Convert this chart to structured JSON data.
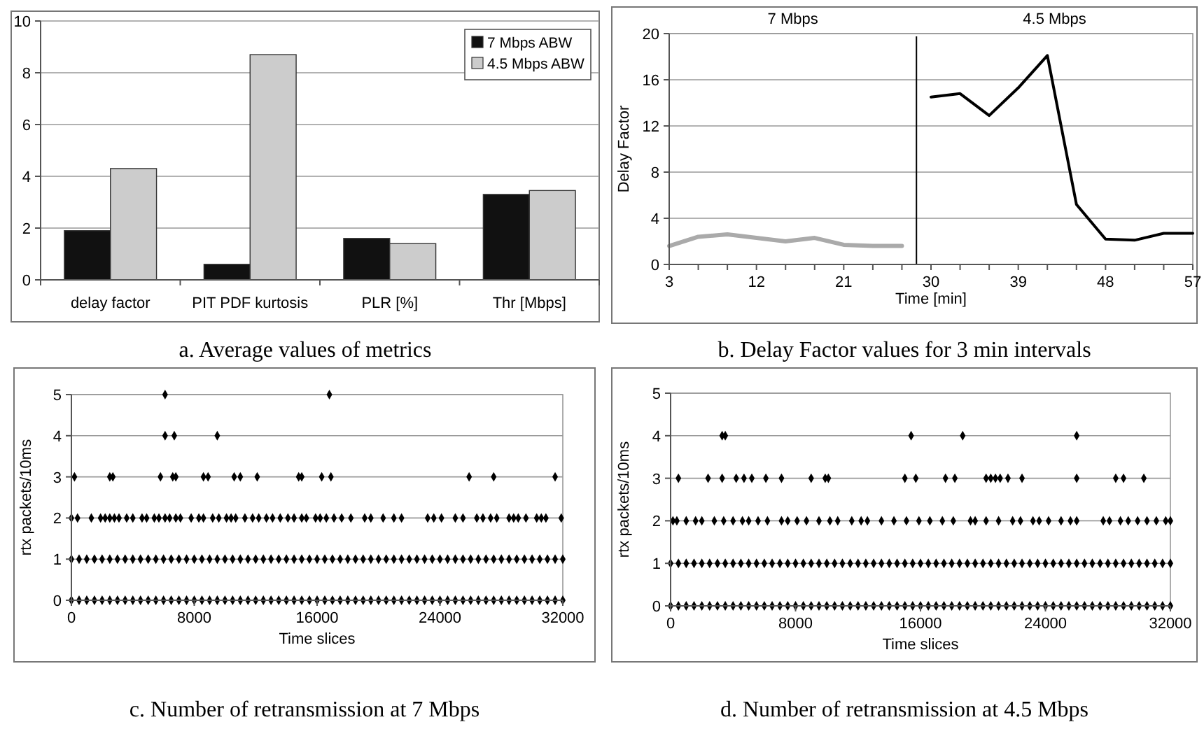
{
  "chart_data": [
    {
      "type": "bar",
      "title": "a. Average values of metrics",
      "categories": [
        "delay factor",
        "PIT PDF kurtosis",
        "PLR [%]",
        "Thr [Mbps]"
      ],
      "series": [
        {
          "name": "7 Mbps ABW",
          "color": "#111111",
          "values": [
            1.9,
            0.6,
            1.6,
            3.3
          ]
        },
        {
          "name": "4.5 Mbps ABW",
          "color": "#cccccc",
          "values": [
            4.3,
            8.7,
            1.4,
            3.45
          ]
        }
      ],
      "ylim": [
        0,
        10
      ],
      "yticks": [
        0,
        2,
        4,
        6,
        8,
        10
      ],
      "grid": "y",
      "legend": "top right"
    },
    {
      "type": "line",
      "title": "b. Delay Factor values for 3 min intervals",
      "xlabel": "Time [min]",
      "ylabel": "Delay Factor",
      "annotations": [
        "7 Mbps",
        "4.5 Mbps"
      ],
      "series": [
        {
          "color": "#aaaaaa",
          "x": [
            3,
            6,
            9,
            12,
            15,
            18,
            21,
            24,
            27
          ],
          "values": [
            1.6,
            2.4,
            2.6,
            2.3,
            2.0,
            2.3,
            1.7,
            1.6,
            1.6
          ]
        },
        {
          "color": "#000000",
          "x": [
            30,
            33,
            36,
            39,
            42,
            45,
            48,
            51,
            54,
            57
          ],
          "values": [
            14.5,
            14.8,
            12.9,
            15.3,
            18.1,
            5.2,
            2.2,
            2.1,
            2.7,
            2.7
          ]
        }
      ],
      "ref_lines": [
        {
          "axis": "x",
          "value": 28.5,
          "color": "#000000"
        }
      ],
      "xlim": [
        3,
        57
      ],
      "xticks": [
        3,
        {
          "value": 6,
          "label": null
        },
        {
          "value": 9,
          "label": null
        },
        12,
        {
          "value": 15,
          "label": null
        },
        {
          "value": 18,
          "label": null
        },
        21,
        {
          "value": 24,
          "label": null
        },
        {
          "value": 27,
          "label": null
        },
        30,
        {
          "value": 33,
          "label": null
        },
        {
          "value": 36,
          "label": null
        },
        39,
        {
          "value": 42,
          "label": null
        },
        {
          "value": 45,
          "label": null
        },
        48,
        {
          "value": 51,
          "label": null
        },
        {
          "value": 54,
          "label": null
        },
        57
      ],
      "ylim": [
        0,
        20
      ],
      "yticks": [
        0,
        4,
        8,
        12,
        16,
        20
      ],
      "grid": "y",
      "marker": "none",
      "line_style": "solid"
    },
    {
      "type": "scatter",
      "title": "c. Number of retransmission at 7 Mbps",
      "xlabel": "Time slices",
      "ylabel": "rtx packets/10ms",
      "series": [
        {
          "color": "#000000",
          "x": [
            0,
            500,
            1000,
            1500,
            2000,
            2500,
            3000,
            3500,
            4000,
            4500,
            5000,
            5500,
            6000,
            6500,
            7000,
            7500,
            8000,
            8500,
            9000,
            9500,
            10000,
            10500,
            11000,
            11500,
            12000,
            12500,
            13000,
            13500,
            14000,
            14500,
            15000,
            15500,
            16000,
            16500,
            17000,
            17500,
            18000,
            18500,
            19000,
            19500,
            20000,
            20500,
            21000,
            21500,
            22000,
            22500,
            23000,
            23500,
            24000,
            24500,
            25000,
            25500,
            26000,
            26500,
            27000,
            27500,
            28000,
            28500,
            29000,
            29500,
            30000,
            30500,
            31000,
            31500,
            32000
          ],
          "values": [
            0,
            0,
            0,
            0,
            0,
            0,
            0,
            0,
            0,
            0,
            0,
            0,
            0,
            0,
            0,
            0,
            0,
            0,
            0,
            0,
            0,
            0,
            0,
            0,
            0,
            0,
            0,
            0,
            0,
            0,
            0,
            0,
            0,
            0,
            0,
            0,
            0,
            0,
            0,
            0,
            0,
            0,
            0,
            0,
            0,
            0,
            0,
            0,
            0,
            0,
            0,
            0,
            0,
            0,
            0,
            0,
            0,
            0,
            0,
            0,
            0,
            0,
            0,
            0,
            0
          ]
        },
        {
          "color": "#000000",
          "x": [
            0,
            500,
            1000,
            1500,
            2000,
            2500,
            3000,
            3500,
            4000,
            4500,
            5000,
            5500,
            6000,
            6500,
            7000,
            7500,
            8000,
            8500,
            9000,
            9500,
            10000,
            10500,
            11000,
            11500,
            12000,
            12500,
            13000,
            13500,
            14000,
            14500,
            15000,
            15500,
            16000,
            16500,
            17000,
            17500,
            18000,
            18500,
            19000,
            19500,
            20000,
            20500,
            21000,
            21500,
            22000,
            22500,
            23000,
            23500,
            24000,
            24500,
            25000,
            25500,
            26000,
            26500,
            27000,
            27500,
            28000,
            28500,
            29000,
            29500,
            30000,
            30500,
            31000,
            31500,
            32000
          ],
          "values": [
            1,
            1,
            1,
            1,
            1,
            1,
            1,
            1,
            1,
            1,
            1,
            1,
            1,
            1,
            1,
            1,
            1,
            1,
            1,
            1,
            1,
            1,
            1,
            1,
            1,
            1,
            1,
            1,
            1,
            1,
            1,
            1,
            1,
            1,
            1,
            1,
            1,
            1,
            1,
            1,
            1,
            1,
            1,
            1,
            1,
            1,
            1,
            1,
            1,
            1,
            1,
            1,
            1,
            1,
            1,
            1,
            1,
            1,
            1,
            1,
            1,
            1,
            1,
            1,
            1
          ]
        },
        {
          "color": "#000000",
          "x": [
            0,
            400,
            1300,
            1900,
            2200,
            2500,
            2800,
            3100,
            3600,
            4000,
            4600,
            4900,
            5400,
            5700,
            6100,
            6400,
            6800,
            7100,
            7800,
            8300,
            8600,
            9200,
            9600,
            10100,
            10400,
            10700,
            11300,
            11800,
            12200,
            12700,
            13100,
            13600,
            14100,
            14500,
            15000,
            15300,
            15900,
            16200,
            16600,
            17100,
            17600,
            18200,
            19100,
            19500,
            20300,
            21000,
            21500,
            23200,
            23600,
            24100,
            25000,
            25500,
            26400,
            26800,
            27300,
            27700,
            28500,
            28800,
            29100,
            29600,
            30300,
            30600,
            30900,
            31900
          ],
          "values": [
            2,
            2,
            2,
            2,
            2,
            2,
            2,
            2,
            2,
            2,
            2,
            2,
            2,
            2,
            2,
            2,
            2,
            2,
            2,
            2,
            2,
            2,
            2,
            2,
            2,
            2,
            2,
            2,
            2,
            2,
            2,
            2,
            2,
            2,
            2,
            2,
            2,
            2,
            2,
            2,
            2,
            2,
            2,
            2,
            2,
            2,
            2,
            2,
            2,
            2,
            2,
            2,
            2,
            2,
            2,
            2,
            2,
            2,
            2,
            2,
            2,
            2,
            2,
            2
          ]
        },
        {
          "color": "#000000",
          "x": [
            200,
            2500,
            2700,
            5800,
            6600,
            6800,
            8600,
            8900,
            10600,
            11000,
            12100,
            14800,
            15000,
            16300,
            16900,
            25900,
            27500,
            31500
          ],
          "values": [
            3,
            3,
            3,
            3,
            3,
            3,
            3,
            3,
            3,
            3,
            3,
            3,
            3,
            3,
            3,
            3,
            3,
            3
          ]
        },
        {
          "color": "#000000",
          "x": [
            6100,
            6700,
            9500,
            6100,
            16800
          ],
          "values": [
            4,
            4,
            4,
            5,
            5
          ]
        }
      ],
      "xlim": [
        0,
        32000
      ],
      "xticks": [
        0,
        8000,
        16000,
        24000,
        32000
      ],
      "ylim": [
        0,
        5
      ],
      "yticks": [
        0,
        1,
        2,
        3,
        4,
        5
      ],
      "grid": "y",
      "marker": "diamond"
    },
    {
      "type": "scatter",
      "title": "d. Number of retransmission at 4.5 Mbps",
      "xlabel": "Time slices",
      "ylabel": "rtx packets/10ms",
      "series": [
        {
          "color": "#000000",
          "x": [
            0,
            500,
            1000,
            1500,
            2000,
            2500,
            3000,
            3500,
            4000,
            4500,
            5000,
            5500,
            6000,
            6500,
            7000,
            7500,
            8000,
            8500,
            9000,
            9500,
            10000,
            10500,
            11000,
            11500,
            12000,
            12500,
            13000,
            13500,
            14000,
            14500,
            15000,
            15500,
            16000,
            16500,
            17000,
            17500,
            18000,
            18500,
            19000,
            19500,
            20000,
            20500,
            21000,
            21500,
            22000,
            22500,
            23000,
            23500,
            24000,
            24500,
            25000,
            25500,
            26000,
            26500,
            27000,
            27500,
            28000,
            28500,
            29000,
            29500,
            30000,
            30500,
            31000,
            31500,
            32000
          ],
          "values": [
            0,
            0,
            0,
            0,
            0,
            0,
            0,
            0,
            0,
            0,
            0,
            0,
            0,
            0,
            0,
            0,
            0,
            0,
            0,
            0,
            0,
            0,
            0,
            0,
            0,
            0,
            0,
            0,
            0,
            0,
            0,
            0,
            0,
            0,
            0,
            0,
            0,
            0,
            0,
            0,
            0,
            0,
            0,
            0,
            0,
            0,
            0,
            0,
            0,
            0,
            0,
            0,
            0,
            0,
            0,
            0,
            0,
            0,
            0,
            0,
            0,
            0,
            0,
            0,
            0
          ]
        },
        {
          "color": "#000000",
          "x": [
            0,
            500,
            1000,
            1500,
            2000,
            2500,
            3000,
            3500,
            4000,
            4500,
            5000,
            5500,
            6000,
            6500,
            7000,
            7500,
            8000,
            8500,
            9000,
            9500,
            10000,
            10500,
            11000,
            11500,
            12000,
            12500,
            13000,
            13500,
            14000,
            14500,
            15000,
            15500,
            16000,
            16500,
            17000,
            17500,
            18000,
            18500,
            19000,
            19500,
            20000,
            20500,
            21000,
            21500,
            22000,
            22500,
            23000,
            23500,
            24000,
            24500,
            25000,
            25500,
            26000,
            26500,
            27000,
            27500,
            28000,
            28500,
            29000,
            29500,
            30000,
            30500,
            31000,
            31500,
            32000
          ],
          "values": [
            1,
            1,
            1,
            1,
            1,
            1,
            1,
            1,
            1,
            1,
            1,
            1,
            1,
            1,
            1,
            1,
            1,
            1,
            1,
            1,
            1,
            1,
            1,
            1,
            1,
            1,
            1,
            1,
            1,
            1,
            1,
            1,
            1,
            1,
            1,
            1,
            1,
            1,
            1,
            1,
            1,
            1,
            1,
            1,
            1,
            1,
            1,
            1,
            1,
            1,
            1,
            1,
            1,
            1,
            1,
            1,
            1,
            1,
            1,
            1,
            1,
            1,
            1,
            1,
            1
          ]
        },
        {
          "color": "#000000",
          "x": [
            150,
            400,
            1000,
            1600,
            2000,
            2800,
            3400,
            4000,
            4600,
            5000,
            5600,
            6200,
            7100,
            7500,
            8100,
            8700,
            9500,
            10200,
            10700,
            11600,
            12200,
            12600,
            13500,
            14300,
            15100,
            15900,
            16600,
            17400,
            18100,
            19200,
            19500,
            20200,
            21000,
            21900,
            22400,
            23200,
            23600,
            24200,
            25000,
            25600,
            26000,
            27700,
            28100,
            28800,
            29300,
            29900,
            30500,
            31100,
            31700,
            32000
          ],
          "values": [
            2,
            2,
            2,
            2,
            2,
            2,
            2,
            2,
            2,
            2,
            2,
            2,
            2,
            2,
            2,
            2,
            2,
            2,
            2,
            2,
            2,
            2,
            2,
            2,
            2,
            2,
            2,
            2,
            2,
            2,
            2,
            2,
            2,
            2,
            2,
            2,
            2,
            2,
            2,
            2,
            2,
            2,
            2,
            2,
            2,
            2,
            2,
            2,
            2,
            2
          ]
        },
        {
          "color": "#000000",
          "x": [
            500,
            2400,
            3300,
            4200,
            4700,
            5200,
            6100,
            7100,
            9000,
            9900,
            10100,
            15000,
            15700,
            17600,
            18200,
            20200,
            20500,
            20800,
            21100,
            21600,
            22500,
            26000,
            28500,
            29000,
            30300
          ],
          "values": [
            3,
            3,
            3,
            3,
            3,
            3,
            3,
            3,
            3,
            3,
            3,
            3,
            3,
            3,
            3,
            3,
            3,
            3,
            3,
            3,
            3,
            3,
            3,
            3,
            3
          ]
        },
        {
          "color": "#000000",
          "x": [
            3300,
            3500,
            15400,
            18700,
            26000
          ],
          "values": [
            4,
            4,
            4,
            4,
            4
          ]
        }
      ],
      "xlim": [
        0,
        32000
      ],
      "xticks": [
        0,
        8000,
        16000,
        24000,
        32000
      ],
      "ylim": [
        0,
        5
      ],
      "yticks": [
        0,
        1,
        2,
        3,
        4,
        5
      ],
      "grid": "y",
      "marker": "diamond"
    }
  ]
}
